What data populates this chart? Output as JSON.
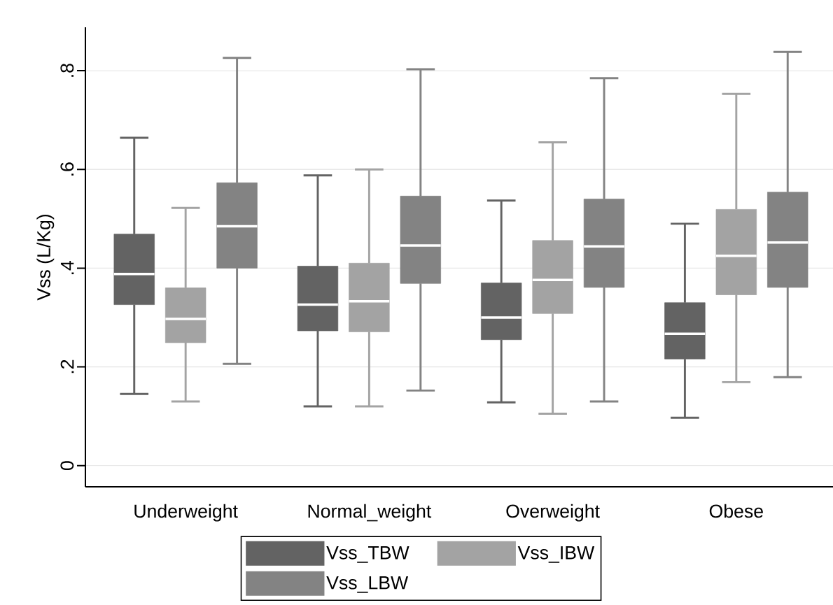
{
  "chart_data": {
    "type": "box",
    "ylabel": "Vss (L/Kg)",
    "categories": [
      "Underweight",
      "Normal_weight",
      "Overweight",
      "Obese"
    ],
    "series": [
      {
        "name": "Vss_TBW",
        "color": "#636363",
        "boxes": [
          {
            "low": 0.145,
            "q1": 0.326,
            "median": 0.388,
            "q3": 0.469,
            "high": 0.664
          },
          {
            "low": 0.12,
            "q1": 0.273,
            "median": 0.326,
            "q3": 0.404,
            "high": 0.588
          },
          {
            "low": 0.128,
            "q1": 0.255,
            "median": 0.3,
            "q3": 0.37,
            "high": 0.537
          },
          {
            "low": 0.097,
            "q1": 0.216,
            "median": 0.267,
            "q3": 0.33,
            "high": 0.49
          }
        ]
      },
      {
        "name": "Vss_IBW",
        "color": "#a3a3a3",
        "boxes": [
          {
            "low": 0.13,
            "q1": 0.249,
            "median": 0.297,
            "q3": 0.36,
            "high": 0.522
          },
          {
            "low": 0.12,
            "q1": 0.271,
            "median": 0.333,
            "q3": 0.41,
            "high": 0.6
          },
          {
            "low": 0.105,
            "q1": 0.308,
            "median": 0.376,
            "q3": 0.456,
            "high": 0.655
          },
          {
            "low": 0.169,
            "q1": 0.346,
            "median": 0.425,
            "q3": 0.519,
            "high": 0.753
          }
        ]
      },
      {
        "name": "Vss_LBW",
        "color": "#838383",
        "boxes": [
          {
            "low": 0.206,
            "q1": 0.4,
            "median": 0.485,
            "q3": 0.573,
            "high": 0.826
          },
          {
            "low": 0.152,
            "q1": 0.369,
            "median": 0.446,
            "q3": 0.546,
            "high": 0.803
          },
          {
            "low": 0.13,
            "q1": 0.361,
            "median": 0.444,
            "q3": 0.54,
            "high": 0.785
          },
          {
            "low": 0.179,
            "q1": 0.361,
            "median": 0.452,
            "q3": 0.554,
            "high": 0.838
          }
        ]
      }
    ],
    "ylim": [
      -0.043,
      0.888
    ],
    "yticks": [
      0,
      {
        "value": 0.2,
        "label": ".2"
      },
      {
        "value": 0.4,
        "label": ".4"
      },
      {
        "value": 0.6,
        "label": ".6"
      },
      {
        "value": 0.8,
        "label": ".8"
      }
    ],
    "grid": "y",
    "legend": "bottom"
  }
}
